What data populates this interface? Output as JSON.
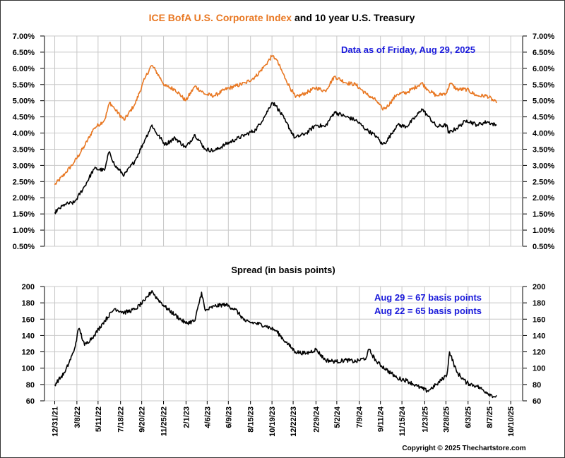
{
  "chart_data": [
    {
      "type": "line",
      "title_part1": "ICE BofA U.S. Corporate Index",
      "title_part2": " and 10 year U.S. Treasury",
      "annotation": "Data as of Friday, Aug 29, 2025",
      "ylim": [
        0.5,
        7.0
      ],
      "y_ticks": [
        "0.50%",
        "1.00%",
        "1.50%",
        "2.00%",
        "2.50%",
        "3.00%",
        "3.50%",
        "4.00%",
        "4.50%",
        "5.00%",
        "5.50%",
        "6.00%",
        "6.50%",
        "7.00%"
      ],
      "grid": true,
      "series": [
        {
          "color": "#E87722",
          "x": [
            "2021-12-31",
            "2022-01-31",
            "2022-02-28",
            "2022-03-31",
            "2022-04-29",
            "2022-05-31",
            "2022-06-15",
            "2022-06-30",
            "2022-07-29",
            "2022-08-31",
            "2022-09-30",
            "2022-10-20",
            "2022-10-31",
            "2022-11-30",
            "2022-12-30",
            "2023-01-31",
            "2023-02-28",
            "2023-03-31",
            "2023-04-28",
            "2023-05-31",
            "2023-06-30",
            "2023-07-31",
            "2023-08-31",
            "2023-09-29",
            "2023-10-19",
            "2023-10-31",
            "2023-11-30",
            "2023-12-29",
            "2024-01-31",
            "2024-02-29",
            "2024-03-28",
            "2024-04-25",
            "2024-05-31",
            "2024-06-28",
            "2024-07-31",
            "2024-08-30",
            "2024-09-16",
            "2024-09-30",
            "2024-10-31",
            "2024-11-29",
            "2024-12-31",
            "2025-01-14",
            "2025-01-31",
            "2025-02-28",
            "2025-03-31",
            "2025-04-09",
            "2025-04-30",
            "2025-05-30",
            "2025-06-30",
            "2025-07-31",
            "2025-08-29"
          ],
          "values": [
            2.4,
            2.75,
            3.1,
            3.6,
            4.15,
            4.4,
            4.95,
            4.75,
            4.4,
            4.9,
            5.7,
            6.1,
            5.95,
            5.45,
            5.35,
            5.0,
            5.45,
            5.2,
            5.15,
            5.35,
            5.45,
            5.55,
            5.75,
            6.1,
            6.38,
            6.3,
            5.65,
            5.1,
            5.25,
            5.4,
            5.3,
            5.75,
            5.55,
            5.5,
            5.2,
            5.0,
            4.75,
            4.8,
            5.2,
            5.25,
            5.45,
            5.55,
            5.35,
            5.15,
            5.25,
            5.55,
            5.35,
            5.35,
            5.15,
            5.15,
            4.92
          ]
        },
        {
          "color": "#000000",
          "x": [
            "2021-12-31",
            "2022-01-31",
            "2022-02-28",
            "2022-03-31",
            "2022-04-29",
            "2022-05-31",
            "2022-06-14",
            "2022-06-30",
            "2022-07-29",
            "2022-08-31",
            "2022-09-30",
            "2022-10-21",
            "2022-10-31",
            "2022-11-30",
            "2022-12-30",
            "2023-01-31",
            "2023-02-28",
            "2023-03-31",
            "2023-04-28",
            "2023-05-31",
            "2023-06-30",
            "2023-07-31",
            "2023-08-31",
            "2023-09-29",
            "2023-10-19",
            "2023-10-31",
            "2023-11-30",
            "2023-12-27",
            "2024-01-31",
            "2024-02-29",
            "2024-03-28",
            "2024-04-25",
            "2024-05-31",
            "2024-06-28",
            "2024-07-31",
            "2024-08-30",
            "2024-09-16",
            "2024-09-30",
            "2024-10-31",
            "2024-11-29",
            "2024-12-31",
            "2025-01-14",
            "2025-01-31",
            "2025-02-28",
            "2025-03-31",
            "2025-04-04",
            "2025-04-30",
            "2025-05-30",
            "2025-06-30",
            "2025-07-31",
            "2025-08-29"
          ],
          "values": [
            1.55,
            1.8,
            1.85,
            2.35,
            2.9,
            2.85,
            3.45,
            3.0,
            2.7,
            3.15,
            3.8,
            4.25,
            4.05,
            3.65,
            3.85,
            3.55,
            3.95,
            3.5,
            3.45,
            3.65,
            3.8,
            3.95,
            4.1,
            4.55,
            4.95,
            4.85,
            4.35,
            3.85,
            4.0,
            4.25,
            4.2,
            4.65,
            4.5,
            4.4,
            4.1,
            3.9,
            3.65,
            3.75,
            4.25,
            4.2,
            4.55,
            4.75,
            4.55,
            4.2,
            4.25,
            4.0,
            4.15,
            4.4,
            4.25,
            4.35,
            4.23
          ]
        }
      ]
    },
    {
      "type": "line",
      "title": "Spread (in basis points)",
      "annotation_lines": [
        "Aug 29 = 67 basis points",
        "Aug 22 = 65 basis points"
      ],
      "ylim": [
        60,
        200
      ],
      "y_ticks": [
        "60",
        "80",
        "100",
        "120",
        "140",
        "160",
        "180",
        "200"
      ],
      "grid": true,
      "series": [
        {
          "color": "#000000",
          "x": [
            "2021-12-31",
            "2022-01-31",
            "2022-02-28",
            "2022-03-14",
            "2022-03-31",
            "2022-04-29",
            "2022-05-25",
            "2022-06-30",
            "2022-07-29",
            "2022-08-31",
            "2022-09-30",
            "2022-10-21",
            "2022-10-31",
            "2022-11-30",
            "2022-12-30",
            "2023-01-31",
            "2023-02-28",
            "2023-03-20",
            "2023-03-31",
            "2023-04-28",
            "2023-05-31",
            "2023-06-30",
            "2023-07-31",
            "2023-08-31",
            "2023-09-29",
            "2023-10-31",
            "2023-11-30",
            "2023-12-29",
            "2024-01-31",
            "2024-02-29",
            "2024-03-28",
            "2024-04-30",
            "2024-05-31",
            "2024-06-28",
            "2024-07-31",
            "2024-08-07",
            "2024-08-30",
            "2024-09-30",
            "2024-10-31",
            "2024-11-29",
            "2024-12-31",
            "2025-01-31",
            "2025-02-28",
            "2025-03-31",
            "2025-04-08",
            "2025-04-30",
            "2025-05-30",
            "2025-06-30",
            "2025-07-31",
            "2025-08-22",
            "2025-08-29"
          ],
          "values": [
            80,
            95,
            122,
            150,
            128,
            140,
            155,
            173,
            168,
            172,
            183,
            195,
            188,
            175,
            165,
            155,
            158,
            193,
            170,
            176,
            178,
            172,
            157,
            155,
            152,
            146,
            132,
            120,
            118,
            123,
            110,
            108,
            110,
            108,
            113,
            123,
            108,
            98,
            88,
            85,
            78,
            72,
            80,
            92,
            120,
            95,
            82,
            78,
            70,
            65,
            67
          ]
        }
      ]
    }
  ],
  "x_tick_labels": [
    "12/31/21",
    "3/8/22",
    "5/11/22",
    "7/18/22",
    "9/20/22",
    "11/25/22",
    "2/1/23",
    "4/6/23",
    "6/9/23",
    "8/15/23",
    "10/19/23",
    "12/22/23",
    "2/29/24",
    "5/2/24",
    "7/9/24",
    "9/11/24",
    "11/15/24",
    "1/23/25",
    "3/28/25",
    "6/3/25",
    "8/7/25",
    "10/10/25"
  ],
  "x_range": [
    "2021-11-30",
    "2025-11-15"
  ],
  "copyright": "Copyright © 2025 Thechartstore.com"
}
